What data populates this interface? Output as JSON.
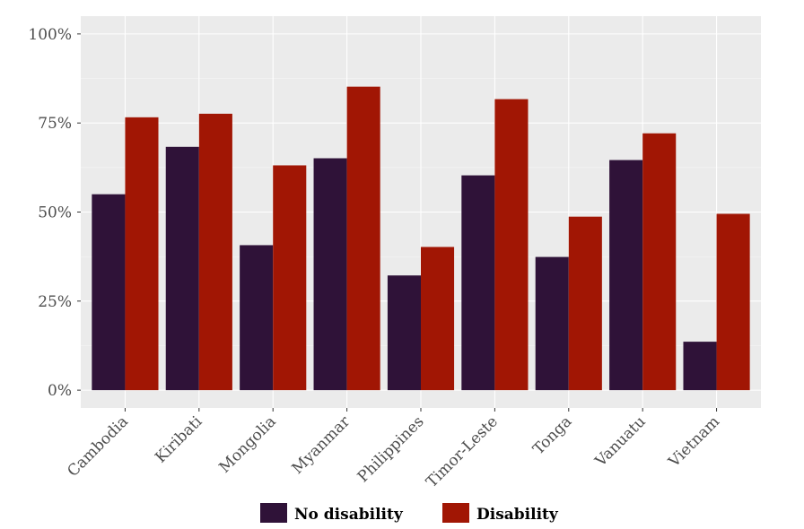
{
  "chart_data": {
    "type": "bar",
    "title": "",
    "xlabel": "",
    "ylabel": "",
    "categories": [
      "Cambodia",
      "Kiribati",
      "Mongolia",
      "Myanmar",
      "Philippines",
      "Timor-Leste",
      "Tonga",
      "Vanuatu",
      "Vietnam"
    ],
    "series": [
      {
        "name": "No disability",
        "color": "#2f1238",
        "values": [
          55.0,
          68.3,
          40.7,
          65.1,
          32.2,
          60.3,
          37.4,
          64.6,
          13.6
        ]
      },
      {
        "name": "Disability",
        "color": "#a11604",
        "values": [
          76.6,
          77.6,
          63.1,
          85.2,
          40.2,
          81.7,
          48.7,
          72.1,
          49.5
        ]
      }
    ],
    "ylim": [
      -5,
      105
    ],
    "yticks": [
      0,
      25,
      50,
      75,
      100
    ],
    "ytick_labels": [
      "0%",
      "25%",
      "50%",
      "75%",
      "100%"
    ],
    "grid": true,
    "legend_position": "bottom",
    "panel_color": "#ebebeb"
  }
}
